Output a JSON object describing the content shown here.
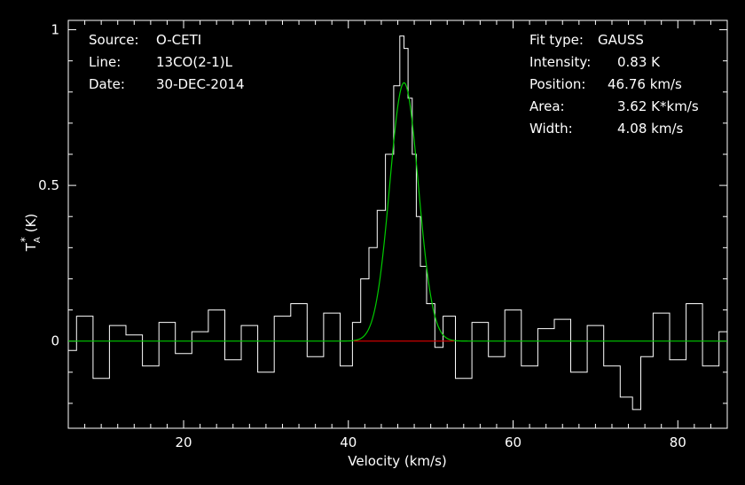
{
  "header_left": {
    "source_label": "Source:",
    "source_value": "O-CETI",
    "line_label": "Line:",
    "line_value": "13CO(2-1)L",
    "date_label": "Date:",
    "date_value": "30-DEC-2014"
  },
  "header_right": {
    "fit_label": "Fit type:",
    "fit_value": "GAUSS",
    "intensity_label": "Intensity:",
    "intensity_value": "0.83 K",
    "position_label": "Position:",
    "position_value": "46.76 km/s",
    "area_label": "Area:",
    "area_value": "3.62 K*km/s",
    "width_label": "Width:",
    "width_value": "4.08 km/s"
  },
  "colors": {
    "background": "#000000",
    "axes": "#ffffff",
    "spectrum": "#ffffff",
    "gaussian_fit": "#00cc00",
    "baseline_fit": "#dd0000"
  },
  "chart_data": {
    "type": "line",
    "xlabel": "Velocity (km/s)",
    "ylabel": "T_A^* (K)",
    "ylabel_parts": {
      "main": "T",
      "sub": "A",
      "sup": "*",
      "unit": "(K)"
    },
    "xlim": [
      6,
      86
    ],
    "ylim": [
      -0.28,
      1.03
    ],
    "x_ticks": [
      20,
      40,
      60,
      80
    ],
    "y_ticks": [
      0,
      0.5,
      1
    ],
    "y_tick_labels": [
      "0",
      "0.5",
      "1"
    ],
    "grid": false,
    "series": [
      {
        "style": "histogram",
        "color": "#ffffff",
        "x": [
          6,
          8,
          10,
          12,
          14,
          16,
          18,
          20,
          22,
          24,
          26,
          28,
          30,
          32,
          34,
          36,
          38,
          40,
          41,
          42,
          43,
          44,
          45,
          46,
          46.5,
          47,
          47.5,
          48,
          48.5,
          49,
          50,
          51,
          52,
          54,
          56,
          58,
          60,
          62,
          64,
          66,
          68,
          70,
          72,
          74,
          75,
          76,
          78,
          80,
          82,
          84,
          86
        ],
        "y": [
          -0.03,
          0.08,
          -0.12,
          0.05,
          0.02,
          -0.08,
          0.06,
          -0.04,
          0.03,
          0.1,
          -0.06,
          0.05,
          -0.1,
          0.08,
          0.12,
          -0.05,
          0.09,
          -0.08,
          0.06,
          0.2,
          0.3,
          0.42,
          0.6,
          0.82,
          0.98,
          0.94,
          0.78,
          0.6,
          0.4,
          0.24,
          0.12,
          -0.02,
          0.08,
          -0.12,
          0.06,
          -0.05,
          0.1,
          -0.08,
          0.04,
          0.07,
          -0.1,
          0.05,
          -0.08,
          -0.18,
          -0.22,
          -0.05,
          0.09,
          -0.06,
          0.12,
          -0.08,
          0.03
        ]
      },
      {
        "style": "gaussian_fit",
        "color": "#00cc00",
        "intensity": 0.83,
        "center": 46.76,
        "fwhm": 4.08
      },
      {
        "style": "baseline",
        "color": "#dd0000",
        "x": [
          40.7,
          52.8
        ],
        "y": [
          0,
          0
        ]
      }
    ]
  }
}
